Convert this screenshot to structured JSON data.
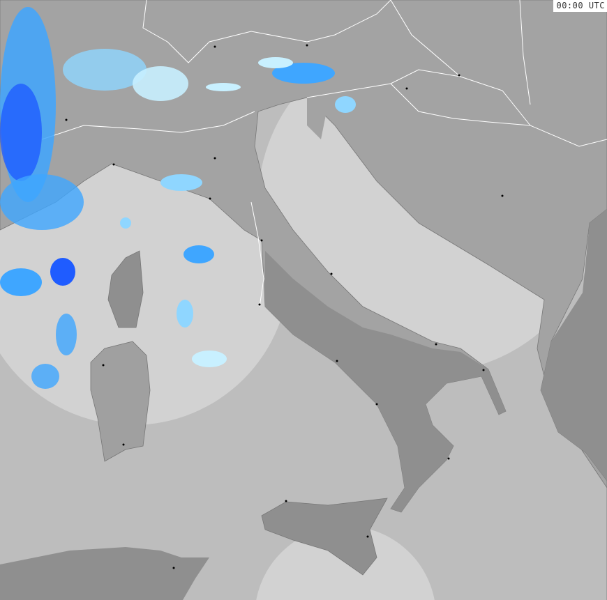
{
  "map": {
    "timestamp": "00:00 UTC",
    "colors": {
      "sea": "#bdbdbd",
      "land": "#a3a3a3",
      "radar_coverage": "#d2d2d2",
      "borders": "#ffffff",
      "precip_light": "#c8f0ff",
      "precip_moderate": "#3fa6ff",
      "precip_heavy": "#1f5cff"
    }
  }
}
